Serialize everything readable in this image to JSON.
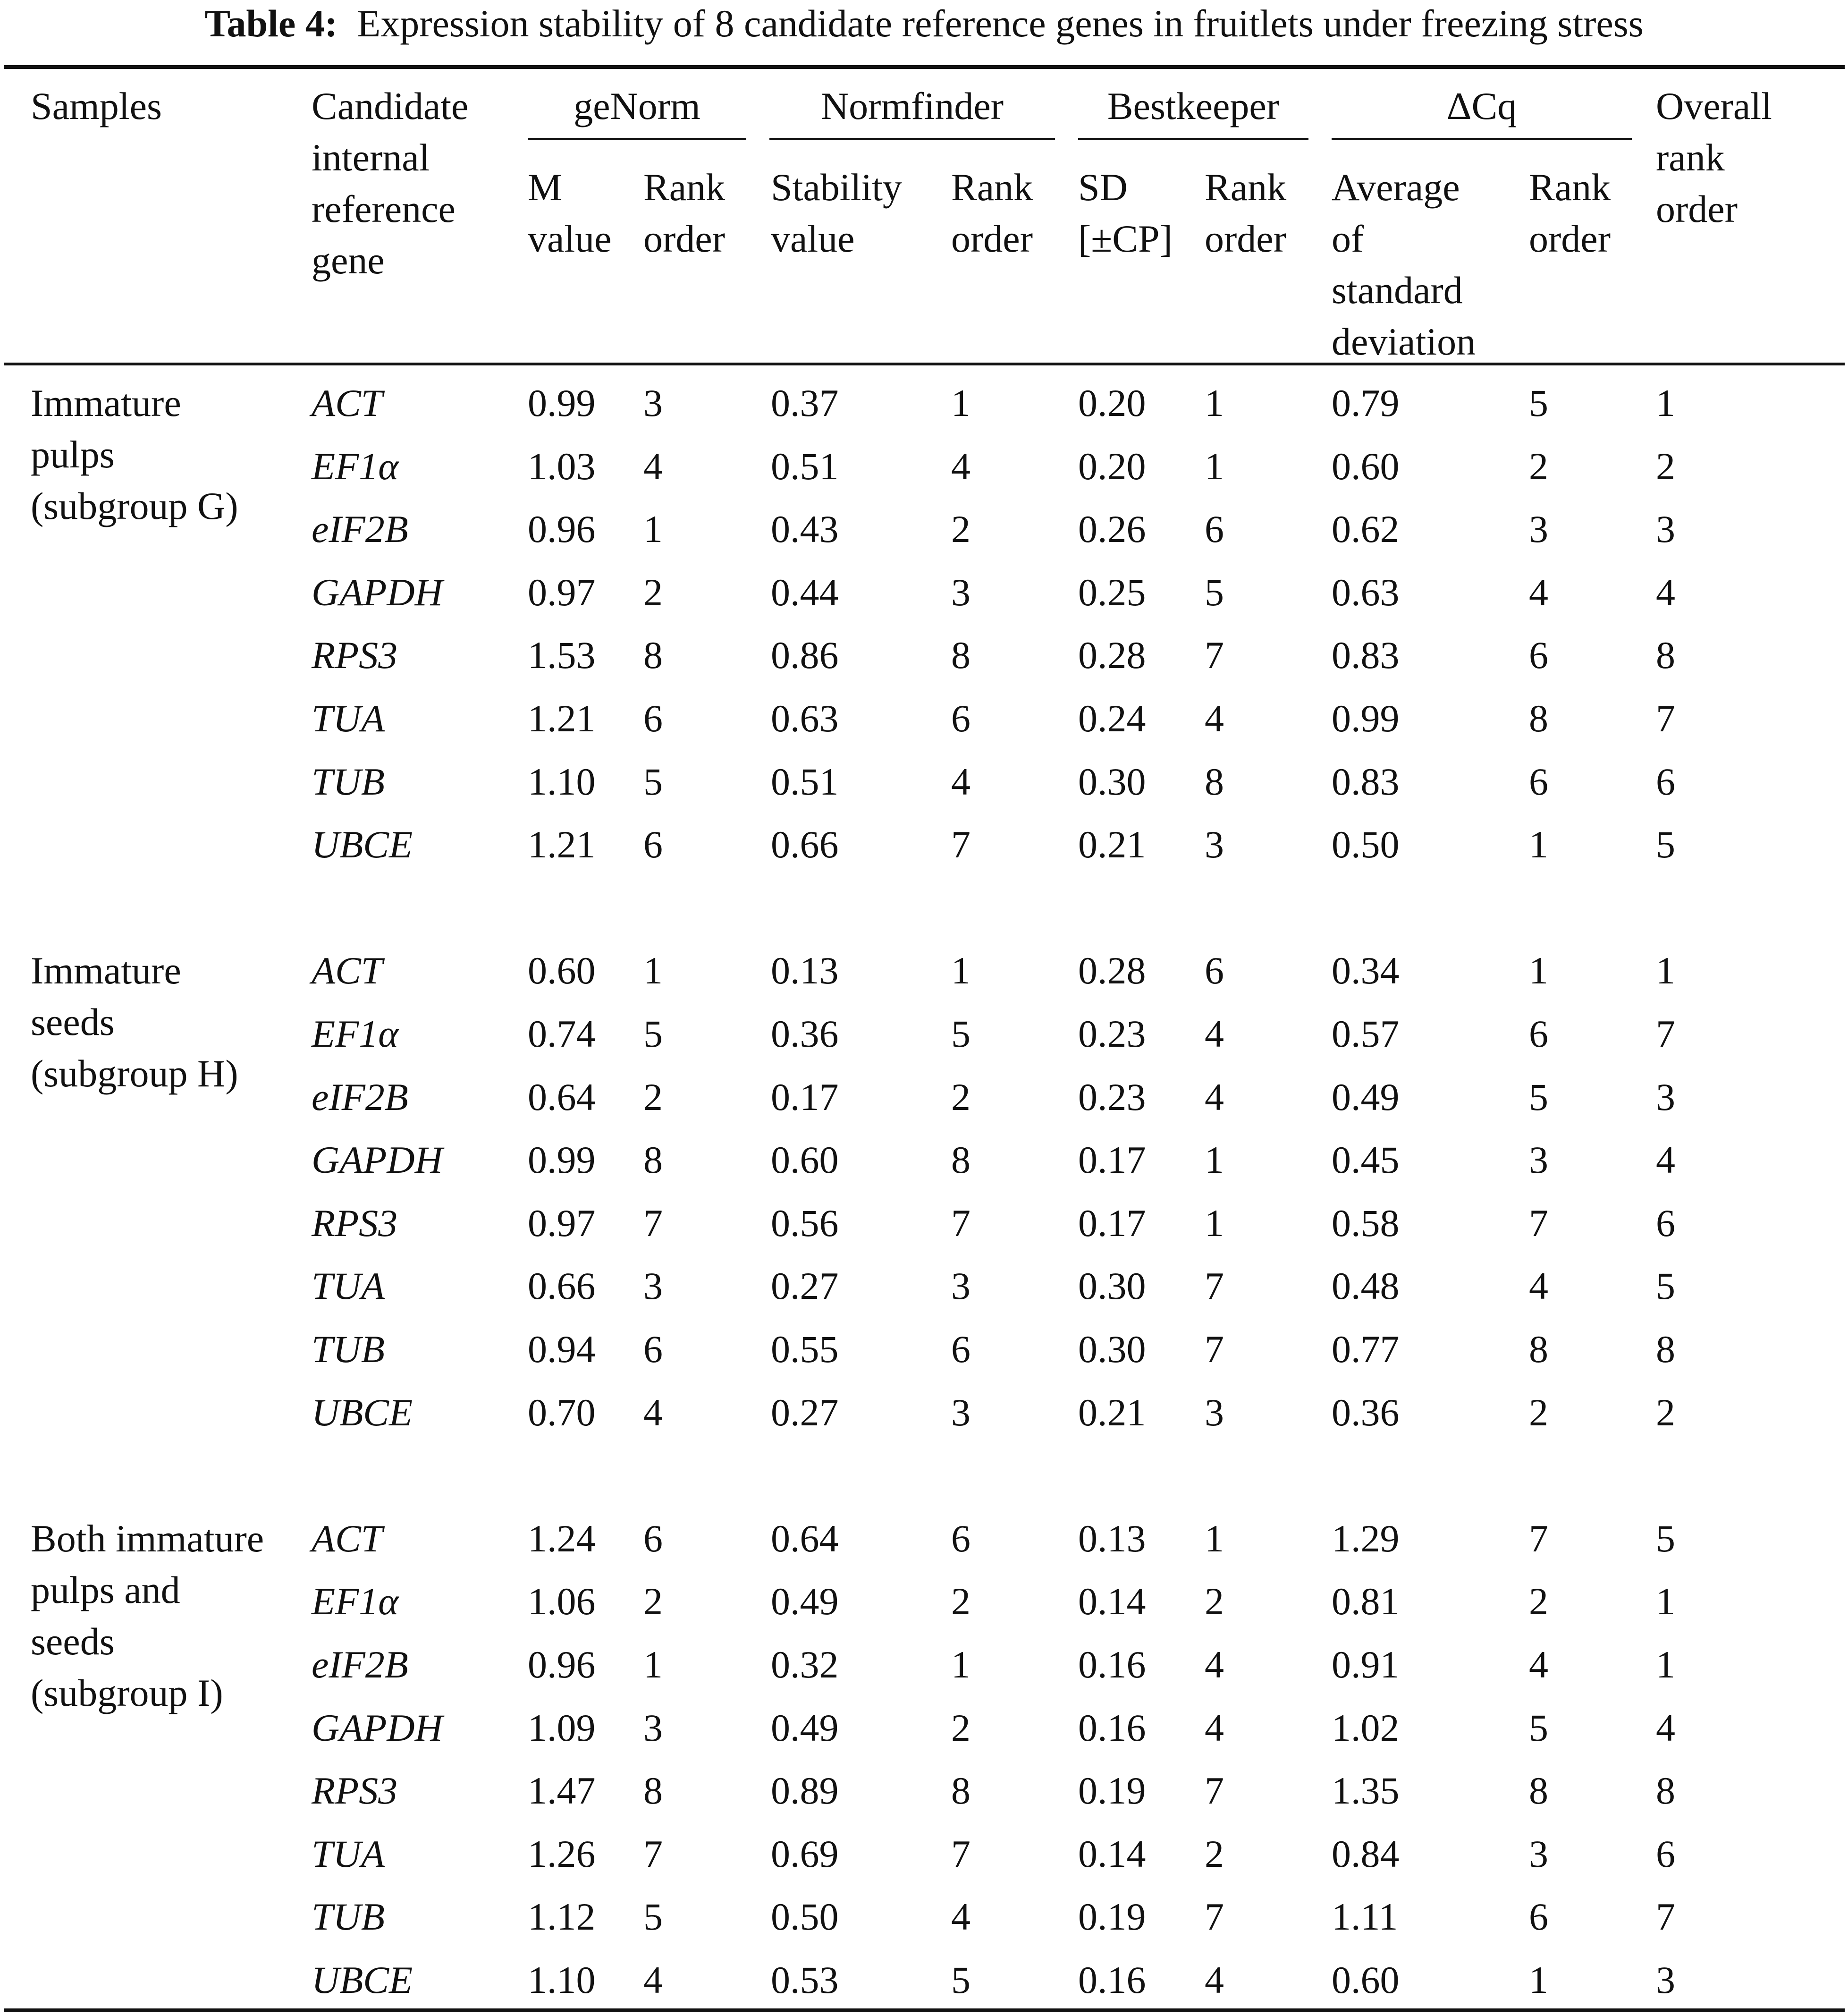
{
  "title": {
    "label": "Table 4:",
    "text": "Expression stability of 8 candidate reference genes in fruitlets under freezing stress"
  },
  "header": {
    "samples": "Samples",
    "gene": [
      "Candidate",
      "internal",
      "reference",
      "gene"
    ],
    "groups": {
      "genorm": "geNorm",
      "normfinder": "Normfinder",
      "bestkeeper": "Bestkeeper",
      "dcq": "ΔCq"
    },
    "overall": [
      "Overall",
      "rank",
      "order"
    ],
    "m_value": [
      "M",
      "value"
    ],
    "genorm_rank": [
      "Rank",
      "order"
    ],
    "stability": [
      "Stability",
      "value"
    ],
    "normfinder_rank": [
      "Rank",
      "order"
    ],
    "sd": [
      "SD",
      "[±CP]"
    ],
    "bestkeeper_rank": [
      "Rank",
      "order"
    ],
    "avg_sd": [
      "Average",
      "of",
      "standard",
      "deviation"
    ],
    "dcq_rank": [
      "Rank",
      "order"
    ]
  },
  "groups": [
    {
      "sample": [
        "Immature",
        "pulps",
        "(subgroup G)"
      ],
      "rows": [
        [
          "ACT",
          "0.99",
          "3",
          "0.37",
          "1",
          "0.20",
          "1",
          "0.79",
          "5",
          "1"
        ],
        [
          "EF1α",
          "1.03",
          "4",
          "0.51",
          "4",
          "0.20",
          "1",
          "0.60",
          "2",
          "2"
        ],
        [
          "eIF2B",
          "0.96",
          "1",
          "0.43",
          "2",
          "0.26",
          "6",
          "0.62",
          "3",
          "3"
        ],
        [
          "GAPDH",
          "0.97",
          "2",
          "0.44",
          "3",
          "0.25",
          "5",
          "0.63",
          "4",
          "4"
        ],
        [
          "RPS3",
          "1.53",
          "8",
          "0.86",
          "8",
          "0.28",
          "7",
          "0.83",
          "6",
          "8"
        ],
        [
          "TUA",
          "1.21",
          "6",
          "0.63",
          "6",
          "0.24",
          "4",
          "0.99",
          "8",
          "7"
        ],
        [
          "TUB",
          "1.10",
          "5",
          "0.51",
          "4",
          "0.30",
          "8",
          "0.83",
          "6",
          "6"
        ],
        [
          "UBCE",
          "1.21",
          "6",
          "0.66",
          "7",
          "0.21",
          "3",
          "0.50",
          "1",
          "5"
        ]
      ]
    },
    {
      "sample": [
        "Immature",
        "seeds",
        "(subgroup H)"
      ],
      "rows": [
        [
          "ACT",
          "0.60",
          "1",
          "0.13",
          "1",
          "0.28",
          "6",
          "0.34",
          "1",
          "1"
        ],
        [
          "EF1α",
          "0.74",
          "5",
          "0.36",
          "5",
          "0.23",
          "4",
          "0.57",
          "6",
          "7"
        ],
        [
          "eIF2B",
          "0.64",
          "2",
          "0.17",
          "2",
          "0.23",
          "4",
          "0.49",
          "5",
          "3"
        ],
        [
          "GAPDH",
          "0.99",
          "8",
          "0.60",
          "8",
          "0.17",
          "1",
          "0.45",
          "3",
          "4"
        ],
        [
          "RPS3",
          "0.97",
          "7",
          "0.56",
          "7",
          "0.17",
          "1",
          "0.58",
          "7",
          "6"
        ],
        [
          "TUA",
          "0.66",
          "3",
          "0.27",
          "3",
          "0.30",
          "7",
          "0.48",
          "4",
          "5"
        ],
        [
          "TUB",
          "0.94",
          "6",
          "0.55",
          "6",
          "0.30",
          "7",
          "0.77",
          "8",
          "8"
        ],
        [
          "UBCE",
          "0.70",
          "4",
          "0.27",
          "3",
          "0.21",
          "3",
          "0.36",
          "2",
          "2"
        ]
      ]
    },
    {
      "sample": [
        "Both immature",
        "pulps and",
        "seeds",
        "(subgroup I)"
      ],
      "rows": [
        [
          "ACT",
          "1.24",
          "6",
          "0.64",
          "6",
          "0.13",
          "1",
          "1.29",
          "7",
          "5"
        ],
        [
          "EF1α",
          "1.06",
          "2",
          "0.49",
          "2",
          "0.14",
          "2",
          "0.81",
          "2",
          "1"
        ],
        [
          "eIF2B",
          "0.96",
          "1",
          "0.32",
          "1",
          "0.16",
          "4",
          "0.91",
          "4",
          "1"
        ],
        [
          "GAPDH",
          "1.09",
          "3",
          "0.49",
          "2",
          "0.16",
          "4",
          "1.02",
          "5",
          "4"
        ],
        [
          "RPS3",
          "1.47",
          "8",
          "0.89",
          "8",
          "0.19",
          "7",
          "1.35",
          "8",
          "8"
        ],
        [
          "TUA",
          "1.26",
          "7",
          "0.69",
          "7",
          "0.14",
          "2",
          "0.84",
          "3",
          "6"
        ],
        [
          "TUB",
          "1.12",
          "5",
          "0.50",
          "4",
          "0.19",
          "7",
          "1.11",
          "6",
          "7"
        ],
        [
          "UBCE",
          "1.10",
          "4",
          "0.53",
          "5",
          "0.16",
          "4",
          "0.60",
          "1",
          "3"
        ]
      ]
    }
  ]
}
